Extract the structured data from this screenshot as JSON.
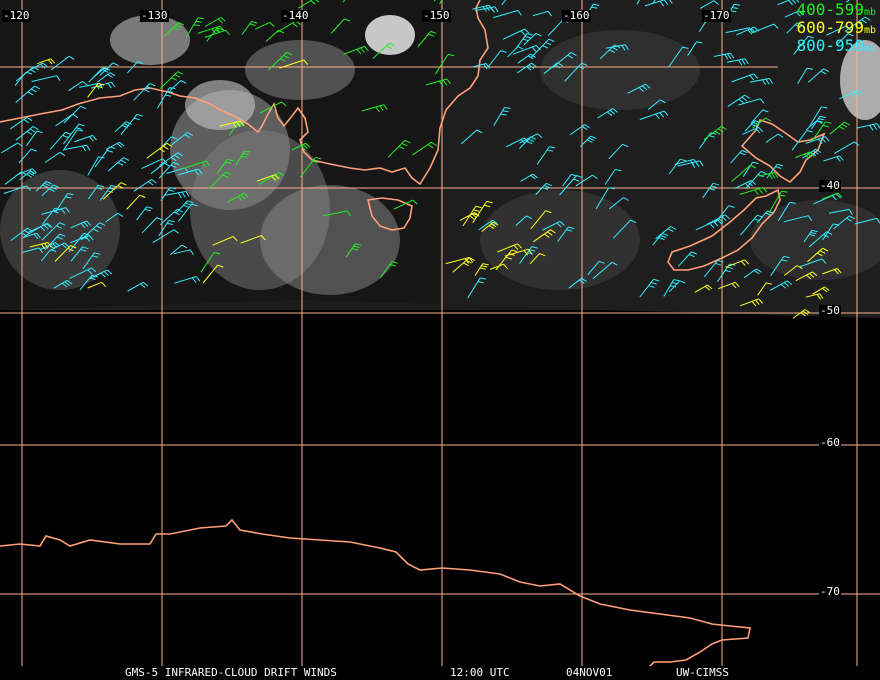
{
  "map": {
    "lon_labels": [
      "-120",
      "-130",
      "-140",
      "-150",
      "-160",
      "-170"
    ],
    "lat_labels": [
      "-40",
      "-50",
      "-60",
      "-70"
    ]
  },
  "legend": [
    {
      "range": "400-599",
      "unit": "mb",
      "color": "#22ee22"
    },
    {
      "range": "600-799",
      "unit": "mb",
      "color": "#ffff22"
    },
    {
      "range": "800-950",
      "unit": "mb",
      "color": "#33eeff"
    }
  ],
  "caption": {
    "product": "GMS-5 INFRARED-CLOUD DRIFT WINDS",
    "time": "12:00 UTC",
    "date": "04NOV01",
    "source": "UW-CIMSS"
  },
  "colors": {
    "grid": "#ffb08a",
    "coastline": "#ffa078",
    "background": "#000000"
  }
}
